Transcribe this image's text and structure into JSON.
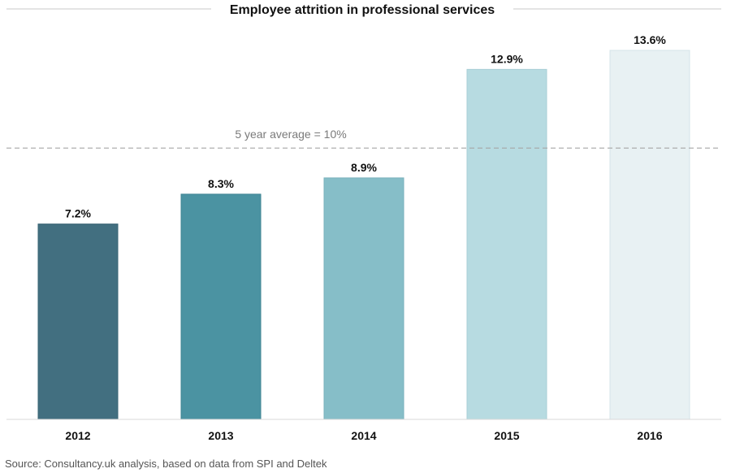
{
  "chart_data": {
    "type": "bar",
    "title": "Employee attrition in professional services",
    "categories": [
      "2012",
      "2013",
      "2014",
      "2015",
      "2016"
    ],
    "values": [
      7.2,
      8.3,
      8.9,
      12.9,
      13.6
    ],
    "value_labels": [
      "7.2%",
      "8.3%",
      "8.9%",
      "12.9%",
      "13.6%"
    ],
    "bar_colors": [
      "#426f80",
      "#4b93a2",
      "#86bec8",
      "#b7dbe1",
      "#e8f1f3"
    ],
    "bar_borders": [
      "#3a6575",
      "#3f8493",
      "#7ab2bc",
      "#a9cfd6",
      "#d4e4e8"
    ],
    "reference_line": {
      "value": 10,
      "label": "5 year average = 10%",
      "style": "dashed",
      "color": "#a6a6a6"
    },
    "ylim": [
      0,
      13.6
    ],
    "grid": false,
    "legend": "none"
  },
  "source_text": "Source: Consultancy.uk analysis, based on data from SPI and Deltek"
}
